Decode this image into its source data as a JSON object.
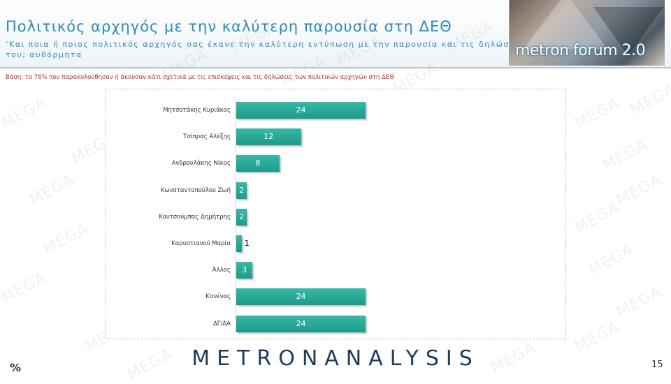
{
  "header": {
    "title": "Πολιτικός αρχηγός με την καλύτερη παρουσία στη ΔΕΘ",
    "subtitle": "‘Και ποια ή ποιος πολιτικός αρχηγός σας έκανε την καλύτερη εντύπωση με την παρουσία και τις δηλώσεις του; αυθόρμητα",
    "logo_text": "metron forum 2.0"
  },
  "base_note": "Βάση: το 76% που παρακολούθησαν ή άκουσαν κάτι σχετικά με τις επισκέψεις και τις δηλώσεις των πολιτικών αρχηγών στη ΔΕΘ",
  "chart_data": {
    "type": "bar",
    "orientation": "horizontal",
    "categories": [
      "Μητσοτάκης Κυριάκος",
      "Τσίπρας Αλέξης",
      "Ανδρουλάκης Νίκος",
      "Κωνσταντοπούλου Ζωή",
      "Κουτσούμπας Δημήτρης",
      "Καρυστιανού Μαρία",
      "Άλλος",
      "Κανένας",
      "ΔΓ/ΔΑ"
    ],
    "values": [
      24,
      12,
      8,
      2,
      2,
      1,
      3,
      24,
      24
    ],
    "value_labels": [
      "24",
      "12",
      "8",
      "2",
      "2",
      "1",
      "3",
      "24",
      "24"
    ],
    "unit": "%",
    "bar_color": "#26a895"
  },
  "watermark_text": "MEGA",
  "footer": {
    "logo": "METRONANALYSIS",
    "percent_symbol": "%",
    "page_number": "15"
  }
}
